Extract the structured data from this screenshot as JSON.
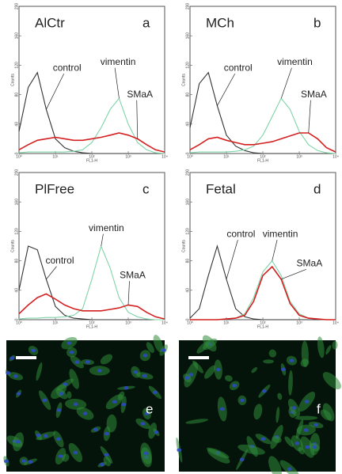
{
  "chart_data": [
    {
      "type": "line",
      "title": "AlCtr",
      "panel_label": "a",
      "xlabel": "FL1-H",
      "ylabel": "Counts",
      "log_x": true,
      "x": [
        1,
        1.8,
        3.2,
        5.6,
        10,
        18,
        32,
        56,
        100,
        180,
        320,
        560,
        1000,
        1800,
        3200,
        5600,
        10000
      ],
      "xlim": [
        1,
        10000
      ],
      "ylim": [
        0,
        200
      ],
      "xticks": [
        {
          "value": 1,
          "label": "10⁰"
        },
        {
          "value": 10,
          "label": "10¹"
        },
        {
          "value": 100,
          "label": "10²"
        },
        {
          "value": 1000,
          "label": "10³"
        },
        {
          "value": 10000,
          "label": "10⁴"
        }
      ],
      "yticks": [
        0,
        40,
        80,
        120,
        160,
        200
      ],
      "series": [
        {
          "name": "control",
          "color": "#333333",
          "values": [
            30,
            90,
            110,
            60,
            20,
            8,
            3,
            1,
            0,
            0,
            0,
            0,
            0,
            0,
            0,
            0,
            0
          ]
        },
        {
          "name": "vimentin",
          "color": "#7fd4a8",
          "values": [
            1,
            2,
            2,
            2,
            2,
            2,
            3,
            5,
            15,
            35,
            60,
            75,
            40,
            15,
            5,
            1,
            0
          ]
        },
        {
          "name": "SMaA",
          "color": "#d42020",
          "values": [
            5,
            12,
            18,
            20,
            22,
            20,
            18,
            18,
            20,
            22,
            25,
            28,
            25,
            20,
            12,
            5,
            2
          ]
        }
      ]
    },
    {
      "type": "line",
      "title": "MCh",
      "panel_label": "b",
      "xlabel": "FL1-H",
      "ylabel": "Counts",
      "log_x": true,
      "x": [
        1,
        1.8,
        3.2,
        5.6,
        10,
        18,
        32,
        56,
        100,
        180,
        320,
        560,
        1000,
        1800,
        3200,
        5600,
        10000
      ],
      "xlim": [
        1,
        10000
      ],
      "ylim": [
        0,
        200
      ],
      "xticks": [
        {
          "value": 1,
          "label": "10⁰"
        },
        {
          "value": 10,
          "label": "10¹"
        },
        {
          "value": 100,
          "label": "10²"
        },
        {
          "value": 1000,
          "label": "10³"
        },
        {
          "value": 10000,
          "label": "10⁴"
        }
      ],
      "yticks": [
        0,
        40,
        80,
        120,
        160,
        200
      ],
      "series": [
        {
          "name": "control",
          "color": "#333333",
          "values": [
            35,
            95,
            110,
            65,
            25,
            10,
            4,
            1,
            0,
            0,
            0,
            0,
            0,
            0,
            0,
            0,
            0
          ]
        },
        {
          "name": "vimentin",
          "color": "#7fd4a8",
          "values": [
            1,
            2,
            2,
            2,
            2,
            3,
            5,
            10,
            25,
            50,
            75,
            60,
            30,
            12,
            4,
            1,
            0
          ]
        },
        {
          "name": "SMaA",
          "color": "#d42020",
          "values": [
            5,
            12,
            20,
            22,
            18,
            15,
            12,
            12,
            14,
            16,
            20,
            24,
            28,
            28,
            20,
            8,
            2
          ]
        }
      ]
    },
    {
      "type": "line",
      "title": "PlFree",
      "panel_label": "c",
      "xlabel": "FL1-H",
      "ylabel": "Counts",
      "log_x": true,
      "x": [
        1,
        1.8,
        3.2,
        5.6,
        10,
        18,
        32,
        56,
        100,
        180,
        320,
        560,
        1000,
        1800,
        3200,
        5600,
        10000
      ],
      "xlim": [
        1,
        10000
      ],
      "ylim": [
        0,
        200
      ],
      "xticks": [
        {
          "value": 1,
          "label": "10⁰"
        },
        {
          "value": 10,
          "label": "10¹"
        },
        {
          "value": 100,
          "label": "10²"
        },
        {
          "value": 1000,
          "label": "10³"
        },
        {
          "value": 10000,
          "label": "10⁴"
        }
      ],
      "yticks": [
        0,
        40,
        80,
        120,
        160,
        200
      ],
      "series": [
        {
          "name": "control",
          "color": "#333333",
          "values": [
            40,
            100,
            95,
            55,
            18,
            6,
            2,
            1,
            0,
            0,
            0,
            0,
            0,
            0,
            0,
            0,
            0
          ]
        },
        {
          "name": "vimentin",
          "color": "#7fd4a8",
          "values": [
            1,
            2,
            2,
            3,
            3,
            4,
            6,
            15,
            55,
            100,
            70,
            30,
            10,
            4,
            1,
            0,
            0
          ]
        },
        {
          "name": "SMaA",
          "color": "#d42020",
          "values": [
            8,
            20,
            30,
            35,
            28,
            20,
            15,
            12,
            12,
            12,
            14,
            16,
            20,
            18,
            10,
            4,
            1
          ]
        }
      ]
    },
    {
      "type": "line",
      "title": "Fetal",
      "panel_label": "d",
      "xlabel": "FL1-H",
      "ylabel": "Counts",
      "log_x": true,
      "x": [
        1,
        1.8,
        3.2,
        5.6,
        10,
        18,
        32,
        56,
        100,
        180,
        320,
        560,
        1000,
        1800,
        3200,
        5600,
        10000
      ],
      "xlim": [
        1,
        10000
      ],
      "ylim": [
        0,
        200
      ],
      "xticks": [
        {
          "value": 1,
          "label": "10⁰"
        },
        {
          "value": 10,
          "label": "10¹"
        },
        {
          "value": 100,
          "label": "10²"
        },
        {
          "value": 1000,
          "label": "10³"
        },
        {
          "value": 10000,
          "label": "10⁴"
        }
      ],
      "yticks": [
        0,
        40,
        80,
        120,
        160,
        200
      ],
      "series": [
        {
          "name": "control",
          "color": "#333333",
          "values": [
            2,
            15,
            60,
            100,
            55,
            15,
            4,
            1,
            0,
            0,
            0,
            0,
            0,
            0,
            0,
            0,
            0
          ]
        },
        {
          "name": "vimentin",
          "color": "#7fd4a8",
          "values": [
            0,
            0,
            0,
            0,
            1,
            2,
            8,
            30,
            65,
            80,
            60,
            25,
            8,
            2,
            1,
            0,
            0
          ]
        },
        {
          "name": "SMaA",
          "color": "#d42020",
          "values": [
            0,
            0,
            0,
            0,
            1,
            2,
            6,
            25,
            60,
            72,
            55,
            22,
            6,
            2,
            1,
            0,
            0
          ]
        }
      ]
    }
  ],
  "images": [
    {
      "label": "e"
    },
    {
      "label": "f"
    }
  ]
}
